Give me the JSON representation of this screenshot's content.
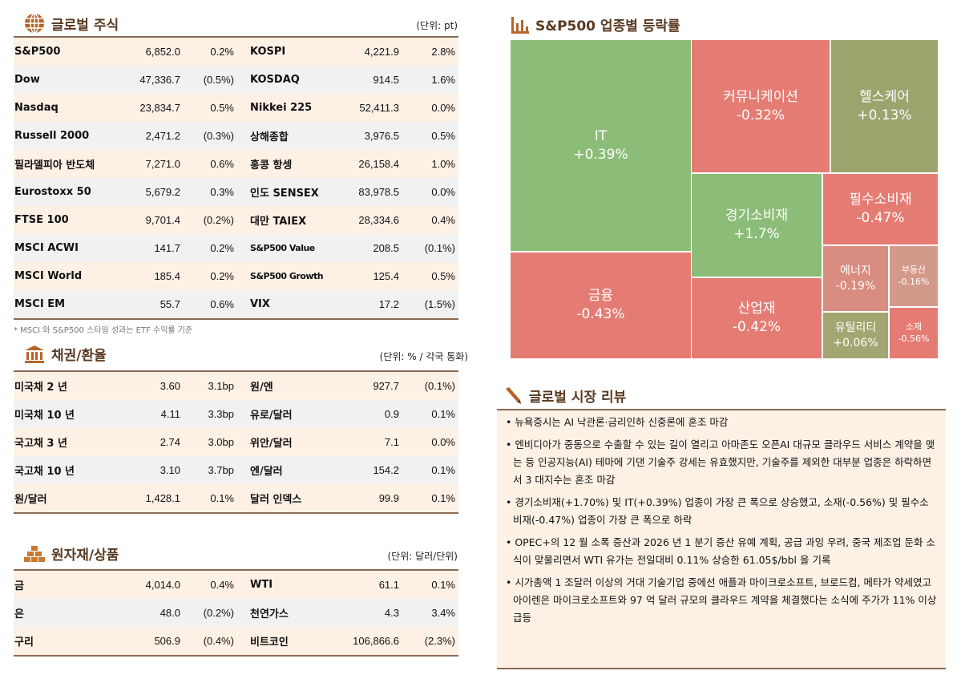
{
  "colors": {
    "header": "#5a3a22",
    "up": "#8cbd78",
    "down": "#e57c74",
    "flat": "#9ca46e"
  },
  "equities": {
    "title": "글로벌 주식",
    "icon": "globe-icon",
    "unit": "(단위: pt)",
    "rows": [
      [
        "S&P500",
        "6,852.0",
        "0.2%",
        "KOSPI",
        "4,221.9",
        "2.8%"
      ],
      [
        "Dow",
        "47,336.7",
        "(0.5%)",
        "KOSDAQ",
        "914.5",
        "1.6%"
      ],
      [
        "Nasdaq",
        "23,834.7",
        "0.5%",
        "Nikkei 225",
        "52,411.3",
        "0.0%"
      ],
      [
        "Russell 2000",
        "2,471.2",
        "(0.3%)",
        "상해종합",
        "3,976.5",
        "0.5%"
      ],
      [
        "필라델피아 반도체",
        "7,271.0",
        "0.6%",
        "홍콩 항셍",
        "26,158.4",
        "1.0%"
      ],
      [
        "Eurostoxx 50",
        "5,679.2",
        "0.3%",
        "인도 SENSEX",
        "83,978.5",
        "0.0%"
      ],
      [
        "FTSE 100",
        "9,701.4",
        "(0.2%)",
        "대만 TAIEX",
        "28,334.6",
        "0.4%"
      ],
      [
        "MSCI ACWI",
        "141.7",
        "0.2%",
        "S&P500 Value",
        "208.5",
        "(0.1%)"
      ],
      [
        "MSCI World",
        "185.4",
        "0.2%",
        "S&P500 Growth",
        "125.4",
        "0.5%"
      ],
      [
        "MSCI EM",
        "55.7",
        "0.6%",
        "VIX",
        "17.2",
        "(1.5%)"
      ]
    ],
    "note": "* MSCI 와 S&P500 스타일 성과는 ETF 수익률 기준"
  },
  "bonds": {
    "title": "채권/환율",
    "icon": "bank-icon",
    "unit": "(단위: % / 각국 통화)",
    "rows": [
      [
        "미국채 2 년",
        "3.60",
        "3.1bp",
        "원/엔",
        "927.7",
        "(0.1%)"
      ],
      [
        "미국채 10 년",
        "4.11",
        "3.3bp",
        "유로/달러",
        "0.9",
        "0.1%"
      ],
      [
        "국고채 3 년",
        "2.74",
        "3.0bp",
        "위안/달러",
        "7.1",
        "0.0%"
      ],
      [
        "국고채 10 년",
        "3.10",
        "3.7bp",
        "엔/달러",
        "154.2",
        "0.1%"
      ],
      [
        "원/달러",
        "1,428.1",
        "0.1%",
        "달러 인덱스",
        "99.9",
        "0.1%"
      ]
    ]
  },
  "commodities": {
    "title": "원자재/상품",
    "icon": "gold-bars-icon",
    "unit": "(단위: 달러/단위)",
    "rows": [
      [
        "금",
        "4,014.0",
        "0.4%",
        "WTI",
        "61.1",
        "0.1%"
      ],
      [
        "은",
        "48.0",
        "(0.2%)",
        "천연가스",
        "4.3",
        "3.4%"
      ],
      [
        "구리",
        "506.9",
        "(0.4%)",
        "비트코인",
        "106,866.6",
        "(2.3%)"
      ]
    ]
  },
  "treemap": {
    "title": "S&P500 업종별 등락률",
    "icon": "bar-chart-icon",
    "sectors": [
      {
        "name": "IT",
        "value": "+0.39%",
        "color": "#8cbd78"
      },
      {
        "name": "금융",
        "value": "-0.43%",
        "color": "#e57c74"
      },
      {
        "name": "커뮤니케이션",
        "value": "-0.32%",
        "color": "#e57c74"
      },
      {
        "name": "헬스케어",
        "value": "+0.13%",
        "color": "#9ca46e"
      },
      {
        "name": "경기소비재",
        "value": "+1.7%",
        "color": "#8cbd78"
      },
      {
        "name": "산업재",
        "value": "-0.42%",
        "color": "#e57c74"
      },
      {
        "name": "필수소비재",
        "value": "-0.47%",
        "color": "#e57c74"
      },
      {
        "name": "에너지",
        "value": "-0.19%",
        "color": "#d98c80"
      },
      {
        "name": "부동산",
        "value": "-0.16%",
        "color": "#d39a8b"
      },
      {
        "name": "유틸리티",
        "value": "+0.06%",
        "color": "#a3a670"
      },
      {
        "name": "소재",
        "value": "-0.56%",
        "color": "#e57c74"
      }
    ]
  },
  "review": {
    "title": "글로벌 시장 리뷰",
    "icon": "pen-icon",
    "items": [
      "• 뉴욕증시는 AI 낙관론·금리인하 신중론에 혼조 마감",
      "• 엔비디아가 중동으로 수출할 수 있는 길이 열리고 아마존도 오픈AI 대규모 클라우드 서비스 계약을 맺는 등 인공지능(AI) 테마에 기댄 기술주 강세는 유효했지만, 기술주를 제외한 대부분 업종은 하락하면서 3 대지수는 혼조 마감",
      "• 경기소비재(+1.70%) 및 IT(+0.39%) 업종이 가장 큰 폭으로 상승했고, 소재(-0.56%) 및 필수소비재(-0.47%) 업종이 가장 큰 폭으로 하락",
      "• OPEC+의 12 월 소폭 증산과 2026 년 1 분기 증산 유예 계획, 공급 과잉 우려, 중국 제조업 둔화 소식이 맞물리면서 WTI 유가는 전일대비 0.11% 상승한 61.05$/bbl 을 기록",
      "• 시가총액 1 조달러 이상의 거대 기술기업 중에선 애플과 마이크로소프트, 브로드컴, 메타가 약세였고 아이렌은 마이크로소프트와 97 억 달러 규모의 클라우드 계약을 체결했다는 소식에 주가가 11% 이상 급등"
    ]
  }
}
